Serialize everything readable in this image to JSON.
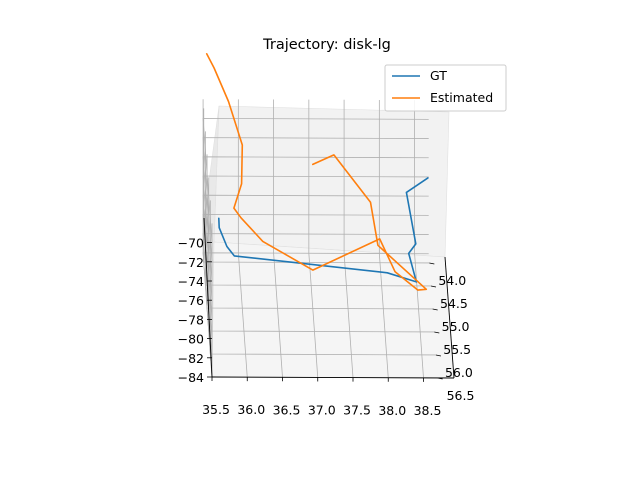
{
  "chart_data": {
    "type": "line",
    "projection": "3d",
    "title": "Trajectory: disk-lg",
    "xlabel": "",
    "ylabel": "",
    "zlabel": "",
    "xlim": [
      35.5,
      38.7
    ],
    "ylim": [
      53.8,
      56.5
    ],
    "zlim": [
      -84,
      -68
    ],
    "x_ticks": [
      "35.5",
      "36.0",
      "36.5",
      "37.0",
      "37.5",
      "38.0",
      "38.5"
    ],
    "y_ticks": [
      "54.0",
      "54.5",
      "55.0",
      "55.5",
      "56.0",
      "56.5"
    ],
    "z_ticks": [
      "−70",
      "−72",
      "−74",
      "−76",
      "−78",
      "−80",
      "−82",
      "−84"
    ],
    "grid": true,
    "legend_position": "top-right",
    "legend": [
      "GT",
      "Estimated"
    ],
    "series": [
      {
        "name": "GT",
        "color": "#1f77b4",
        "points": [
          [
            38.6,
            55.7,
            -67.0
          ],
          [
            38.3,
            55.6,
            -69.0
          ],
          [
            38.4,
            56.3,
            -71.0
          ],
          [
            38.3,
            56.3,
            -72.0
          ],
          [
            38.4,
            56.5,
            -74.0
          ],
          [
            38.0,
            56.2,
            -74.5
          ],
          [
            35.9,
            54.7,
            -80.0
          ],
          [
            35.8,
            54.6,
            -79.5
          ],
          [
            35.7,
            54.4,
            -78.5
          ],
          [
            35.7,
            54.3,
            -78.0
          ]
        ]
      },
      {
        "name": "Estimated",
        "color": "#ff7f0e",
        "points": [
          [
            37.0,
            55.0,
            -69.0
          ],
          [
            37.3,
            55.0,
            -68.0
          ],
          [
            37.8,
            55.4,
            -71.0
          ],
          [
            37.9,
            55.5,
            -75.0
          ],
          [
            38.6,
            55.2,
            -81.0
          ],
          [
            38.5,
            54.8,
            -83.0
          ],
          [
            38.2,
            54.3,
            -83.5
          ],
          [
            38.0,
            53.9,
            -82.0
          ],
          [
            37.0,
            55.0,
            -80.0
          ],
          [
            36.3,
            54.8,
            -78.0
          ],
          [
            36.0,
            54.6,
            -76.5
          ],
          [
            35.9,
            54.6,
            -75.5
          ],
          [
            36.0,
            54.8,
            -72.0
          ],
          [
            36.0,
            55.0,
            -67.0
          ],
          [
            35.8,
            55.1,
            -62.0
          ],
          [
            35.6,
            55.0,
            -59.0
          ],
          [
            35.5,
            54.9,
            -58.0
          ]
        ]
      }
    ]
  }
}
